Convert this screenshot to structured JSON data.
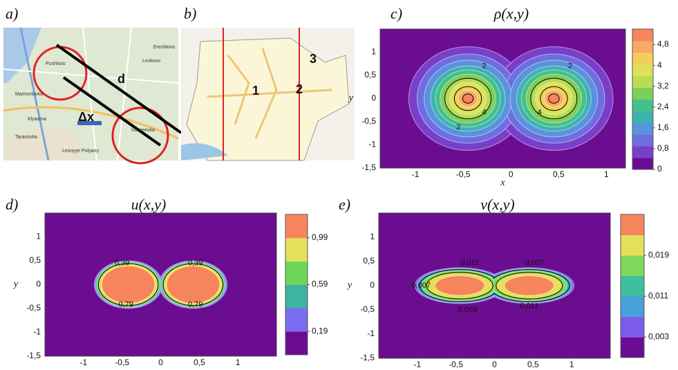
{
  "maps": [
    {
      "panel_label": "a)",
      "labels": [
        "Pushkino",
        "Mamontovka",
        "Klyazma",
        "Ivanteevka",
        "Tarasovka",
        "Lesnyye Polyany",
        "Levkovo",
        "Ereshkino"
      ],
      "d": "d",
      "dx": "Δx"
    },
    {
      "panel_label": "b)",
      "points": [
        "1",
        "2",
        "3"
      ]
    }
  ],
  "chart_data": [
    {
      "type": "contour",
      "panel_label": "c)",
      "title": "ρ(x,y)",
      "xlabel": "x",
      "ylabel": "y",
      "xlim": [
        -1.37,
        1.2
      ],
      "ylim": [
        -1.5,
        1.5
      ],
      "xticks": [
        -1,
        {
          "value": -0.5,
          "label": "-0,5"
        },
        0,
        {
          "value": 0.5,
          "label": "0,5"
        },
        1
      ],
      "yticks": [
        {
          "value": -1.5,
          "label": "-1,5"
        },
        -1,
        {
          "value": -0.5,
          "label": "-0,5"
        },
        0,
        {
          "value": 0.5,
          "label": "0,5"
        },
        1
      ],
      "colorbar": {
        "clim": [
          0,
          5.4
        ],
        "colors": [
          "#6a0d91",
          "#7a3fc9",
          "#6d6fe0",
          "#5a93dd",
          "#3db3b0",
          "#45c08a",
          "#7ccf5a",
          "#b9dc55",
          "#dfe15a",
          "#f2cf5a",
          "#f8a964",
          "#f7855b"
        ],
        "ticks": [
          0,
          {
            "value": 0.8,
            "label": "0,8"
          },
          {
            "value": 1.6,
            "label": "1,6"
          },
          {
            "value": 2.4,
            "label": "2,4"
          },
          {
            "value": 3.2,
            "label": "3,2"
          },
          4,
          {
            "value": 4.8,
            "label": "4,8"
          }
        ]
      },
      "contour_labels": [
        "2",
        "4",
        "2",
        "2",
        "4"
      ]
    },
    {
      "type": "contour",
      "panel_label": "d)",
      "title": "u(x,y)",
      "ylabel": "y",
      "xlim": [
        -1.5,
        1.5
      ],
      "ylim": [
        -1.5,
        1.5
      ],
      "xticks": [
        -1,
        {
          "value": -0.5,
          "label": "-0,5"
        },
        0,
        {
          "value": 0.5,
          "label": "0,5"
        },
        1
      ],
      "yticks": [
        {
          "value": -1.5,
          "label": "-1,5"
        },
        -1,
        {
          "value": -0.5,
          "label": "-0,5"
        },
        0,
        {
          "value": 0.5,
          "label": "0,5"
        },
        1
      ],
      "colorbar": {
        "clim": [
          -0.01,
          1.19
        ],
        "colors": [
          "#6a0d91",
          "#7a6cf0",
          "#3db3a0",
          "#6fd55a",
          "#e4e05a",
          "#f7855b"
        ],
        "ticks": [
          {
            "value": 0.19,
            "label": "0,19"
          },
          {
            "value": 0.59,
            "label": "0,59"
          },
          {
            "value": 0.99,
            "label": "0,99"
          }
        ]
      },
      "contour_labels": [
        "0,39",
        "0,79",
        "0,39",
        "0,79"
      ]
    },
    {
      "type": "contour",
      "panel_label": "e)",
      "title": "v(x,y)",
      "ylabel": "y",
      "xlim": [
        -1.5,
        1.5
      ],
      "ylim": [
        -1.5,
        1.5
      ],
      "xticks": [
        -1,
        {
          "value": -0.5,
          "label": "-0,5"
        },
        0,
        {
          "value": 0.5,
          "label": "0,5"
        },
        1
      ],
      "yticks": [
        {
          "value": -1.5,
          "label": "-1,5"
        },
        -1,
        {
          "value": -0.5,
          "label": "-0,5"
        },
        0,
        {
          "value": 0.5,
          "label": "0,5"
        },
        1
      ],
      "colorbar": {
        "clim": [
          -0.001,
          0.027
        ],
        "colors": [
          "#6a0d91",
          "#7a5ce8",
          "#4aa0d8",
          "#3dbfa0",
          "#7fd85a",
          "#e4e05a",
          "#f7855b"
        ],
        "ticks": [
          {
            "value": 0.003,
            "label": "0,003"
          },
          {
            "value": 0.011,
            "label": "0,011"
          },
          {
            "value": 0.019,
            "label": "0,019"
          }
        ]
      },
      "contour_labels": [
        "0,011",
        "0,007",
        "0,003",
        "0,011",
        "0,007"
      ]
    }
  ]
}
